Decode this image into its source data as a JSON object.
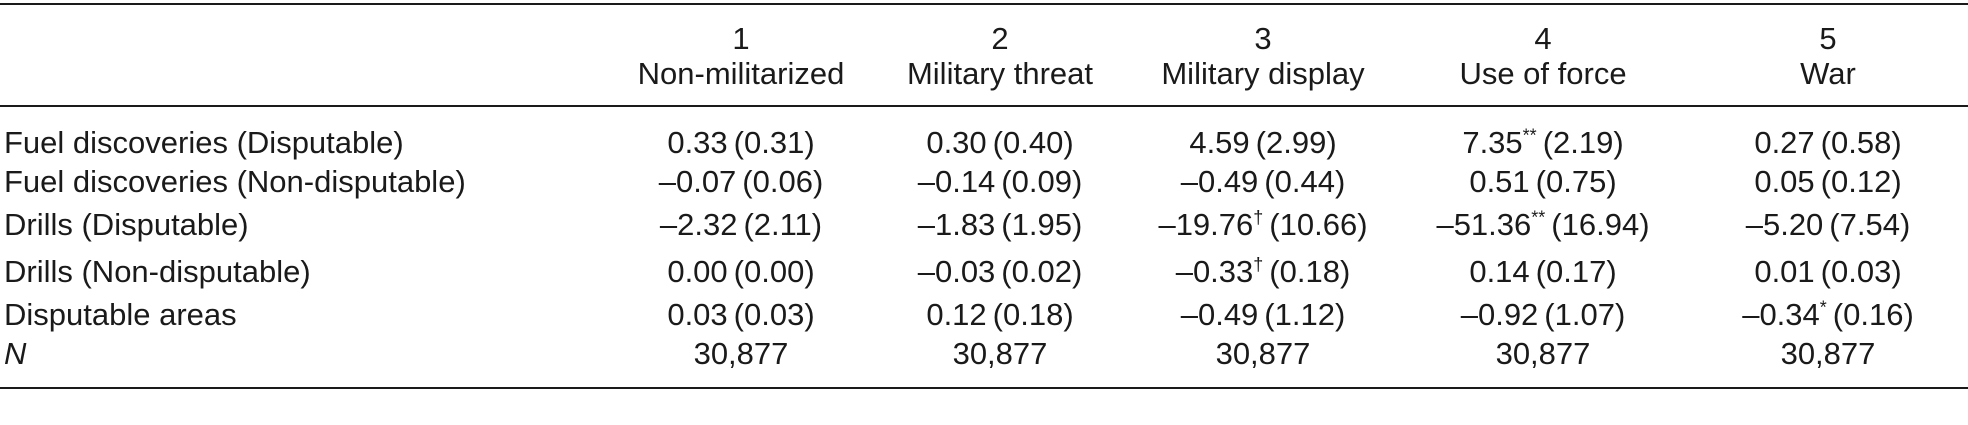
{
  "table": {
    "columns": [
      {
        "number": "1",
        "title": "Non-militarized"
      },
      {
        "number": "2",
        "title": "Military threat"
      },
      {
        "number": "3",
        "title": "Military display"
      },
      {
        "number": "4",
        "title": "Use of force"
      },
      {
        "number": "5",
        "title": "War"
      }
    ],
    "rows": [
      {
        "label": "Fuel discoveries (Disputable)",
        "cells": [
          {
            "coef": "0.33",
            "stars": "",
            "se": "(0.31)"
          },
          {
            "coef": "0.30",
            "stars": "",
            "se": "(0.40)"
          },
          {
            "coef": "4.59",
            "stars": "",
            "se": "(2.99)"
          },
          {
            "coef": "7.35",
            "stars": "**",
            "se": "(2.19)"
          },
          {
            "coef": "0.27",
            "stars": "",
            "se": "(0.58)"
          }
        ]
      },
      {
        "label": "Fuel discoveries (Non-disputable)",
        "cells": [
          {
            "coef": "–0.07",
            "stars": "",
            "se": "(0.06)"
          },
          {
            "coef": "–0.14",
            "stars": "",
            "se": "(0.09)"
          },
          {
            "coef": "–0.49",
            "stars": "",
            "se": "(0.44)"
          },
          {
            "coef": "0.51",
            "stars": "",
            "se": "(0.75)"
          },
          {
            "coef": "0.05",
            "stars": "",
            "se": "(0.12)"
          }
        ]
      },
      {
        "label": "Drills (Disputable)",
        "cells": [
          {
            "coef": "–2.32",
            "stars": "",
            "se": "(2.11)"
          },
          {
            "coef": "–1.83",
            "stars": "",
            "se": "(1.95)"
          },
          {
            "coef": "–19.76",
            "stars": "†",
            "se": "(10.66)"
          },
          {
            "coef": "–51.36",
            "stars": "**",
            "se": "(16.94)"
          },
          {
            "coef": "–5.20",
            "stars": "",
            "se": "(7.54)"
          }
        ]
      },
      {
        "label": "Drills (Non-disputable)",
        "cells": [
          {
            "coef": "0.00",
            "stars": "",
            "se": "(0.00)"
          },
          {
            "coef": "–0.03",
            "stars": "",
            "se": "(0.02)"
          },
          {
            "coef": "–0.33",
            "stars": "†",
            "se": "(0.18)"
          },
          {
            "coef": "0.14",
            "stars": "",
            "se": "(0.17)"
          },
          {
            "coef": "0.01",
            "stars": "",
            "se": "(0.03)"
          }
        ]
      },
      {
        "label": "Disputable areas",
        "cells": [
          {
            "coef": "0.03",
            "stars": "",
            "se": "(0.03)"
          },
          {
            "coef": "0.12",
            "stars": "",
            "se": "(0.18)"
          },
          {
            "coef": "–0.49",
            "stars": "",
            "se": "(1.12)"
          },
          {
            "coef": "–0.92",
            "stars": "",
            "se": "(1.07)"
          },
          {
            "coef": "–0.34",
            "stars": "*",
            "se": "(0.16)"
          }
        ]
      }
    ],
    "n_row": {
      "label": "N",
      "values": [
        "30,877",
        "30,877",
        "30,877",
        "30,877",
        "30,877"
      ]
    }
  }
}
